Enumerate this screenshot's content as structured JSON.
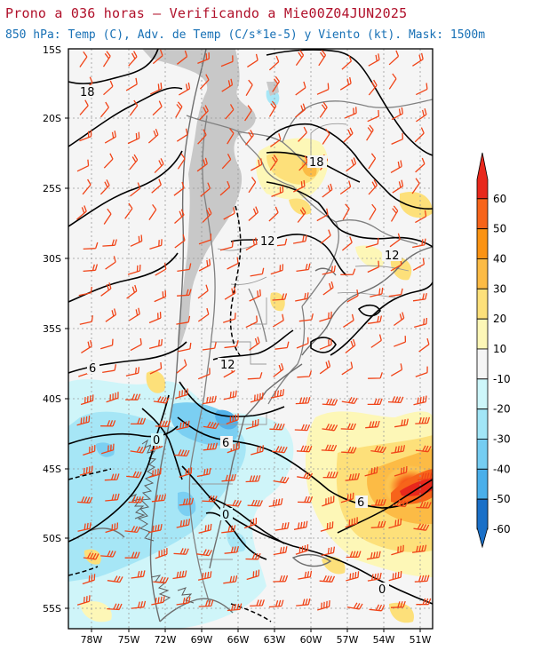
{
  "title": "Prono a 036 horas — Verificando a Mie00Z04JUN2025",
  "subtitle": "850 hPa: Temp (C), Adv. de Temp (C/s*1e-5) y Viento (kt). Mask: 1500m",
  "axes": {
    "lat_labels": [
      "15S",
      "20S",
      "25S",
      "30S",
      "35S",
      "40S",
      "45S",
      "50S",
      "55S"
    ],
    "lon_labels": [
      "78W",
      "75W",
      "72W",
      "69W",
      "66W",
      "63W",
      "60W",
      "57W",
      "54W",
      "51W"
    ]
  },
  "contour_labels": [
    {
      "text": "18",
      "name": "isotherm-18-north"
    },
    {
      "text": "18",
      "name": "isotherm-18-paraguay"
    },
    {
      "text": "12",
      "name": "isotherm-12-chaco"
    },
    {
      "text": "12",
      "name": "isotherm-12-south-brazil"
    },
    {
      "text": "12",
      "name": "isotherm-12-pampa"
    },
    {
      "text": "6",
      "name": "isotherm-6-pacific"
    },
    {
      "text": "6",
      "name": "isotherm-6-patagonia"
    },
    {
      "text": "6",
      "name": "isotherm-6-atlantic"
    },
    {
      "text": "0",
      "name": "isotherm-0-andes"
    },
    {
      "text": "0",
      "name": "isotherm-0-south"
    },
    {
      "text": "0",
      "name": "isotherm-0-ocean"
    }
  ],
  "colorbar": {
    "labels": [
      "60",
      "50",
      "40",
      "30",
      "20",
      "10",
      "-10",
      "-20",
      "-30",
      "-40",
      "-50",
      "-60"
    ],
    "colors": [
      "#e8281c",
      "#f7641a",
      "#fb9313",
      "#fcbb45",
      "#fde07a",
      "#fdf7b7",
      "#f5f5f5",
      "#cdf6fa",
      "#a2e6f7",
      "#75cdf2",
      "#4aafea",
      "#238de0",
      "#1a70c8"
    ]
  },
  "colors": {
    "title": "#b0102a",
    "subtitle": "#1770b5",
    "wind_barb": "#f04418",
    "mask": "#c8c8c8",
    "border": "#808080"
  }
}
